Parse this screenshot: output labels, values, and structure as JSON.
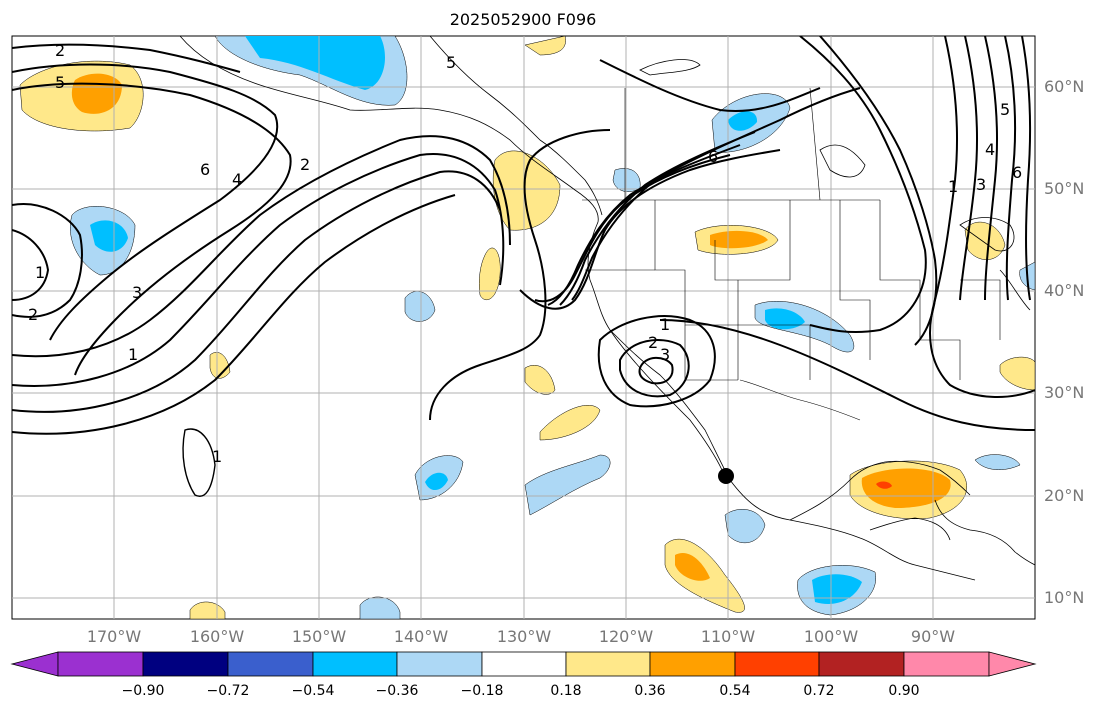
{
  "title": "2025052900 F096",
  "map": {
    "extent": {
      "lon": [
        -180,
        -80
      ],
      "lat": [
        8,
        65
      ]
    },
    "lon_ticks": [
      "170°W",
      "160°W",
      "150°W",
      "140°W",
      "130°W",
      "120°W",
      "110°W",
      "100°W",
      "90°W"
    ],
    "lat_ticks": [
      "60°N",
      "50°N",
      "40°N",
      "30°N",
      "20°N",
      "10°N"
    ],
    "contour_labels": [
      "2",
      "5",
      "6",
      "4",
      "2",
      "1",
      "2",
      "3",
      "1",
      "5",
      "6",
      "1",
      "2",
      "3",
      "1",
      "1",
      "3",
      "4",
      "5",
      "6"
    ],
    "marker": {
      "lon": -110,
      "lat": 22
    }
  },
  "colorbar": {
    "ticks": [
      "−0.90",
      "−0.72",
      "−0.54",
      "−0.36",
      "−0.18",
      "0.18",
      "0.36",
      "0.54",
      "0.72",
      "0.90"
    ],
    "colors": [
      "#9b30d0",
      "#000080",
      "#3a5fcd",
      "#00bfff",
      "#add8f5",
      "#ffffff",
      "#ffe88a",
      "#ffa000",
      "#ff4000",
      "#b22222",
      "#ff88aa"
    ]
  },
  "colors": {
    "grid": "#b0b0b0",
    "contour": "#000000",
    "tick_label": "#777777"
  }
}
